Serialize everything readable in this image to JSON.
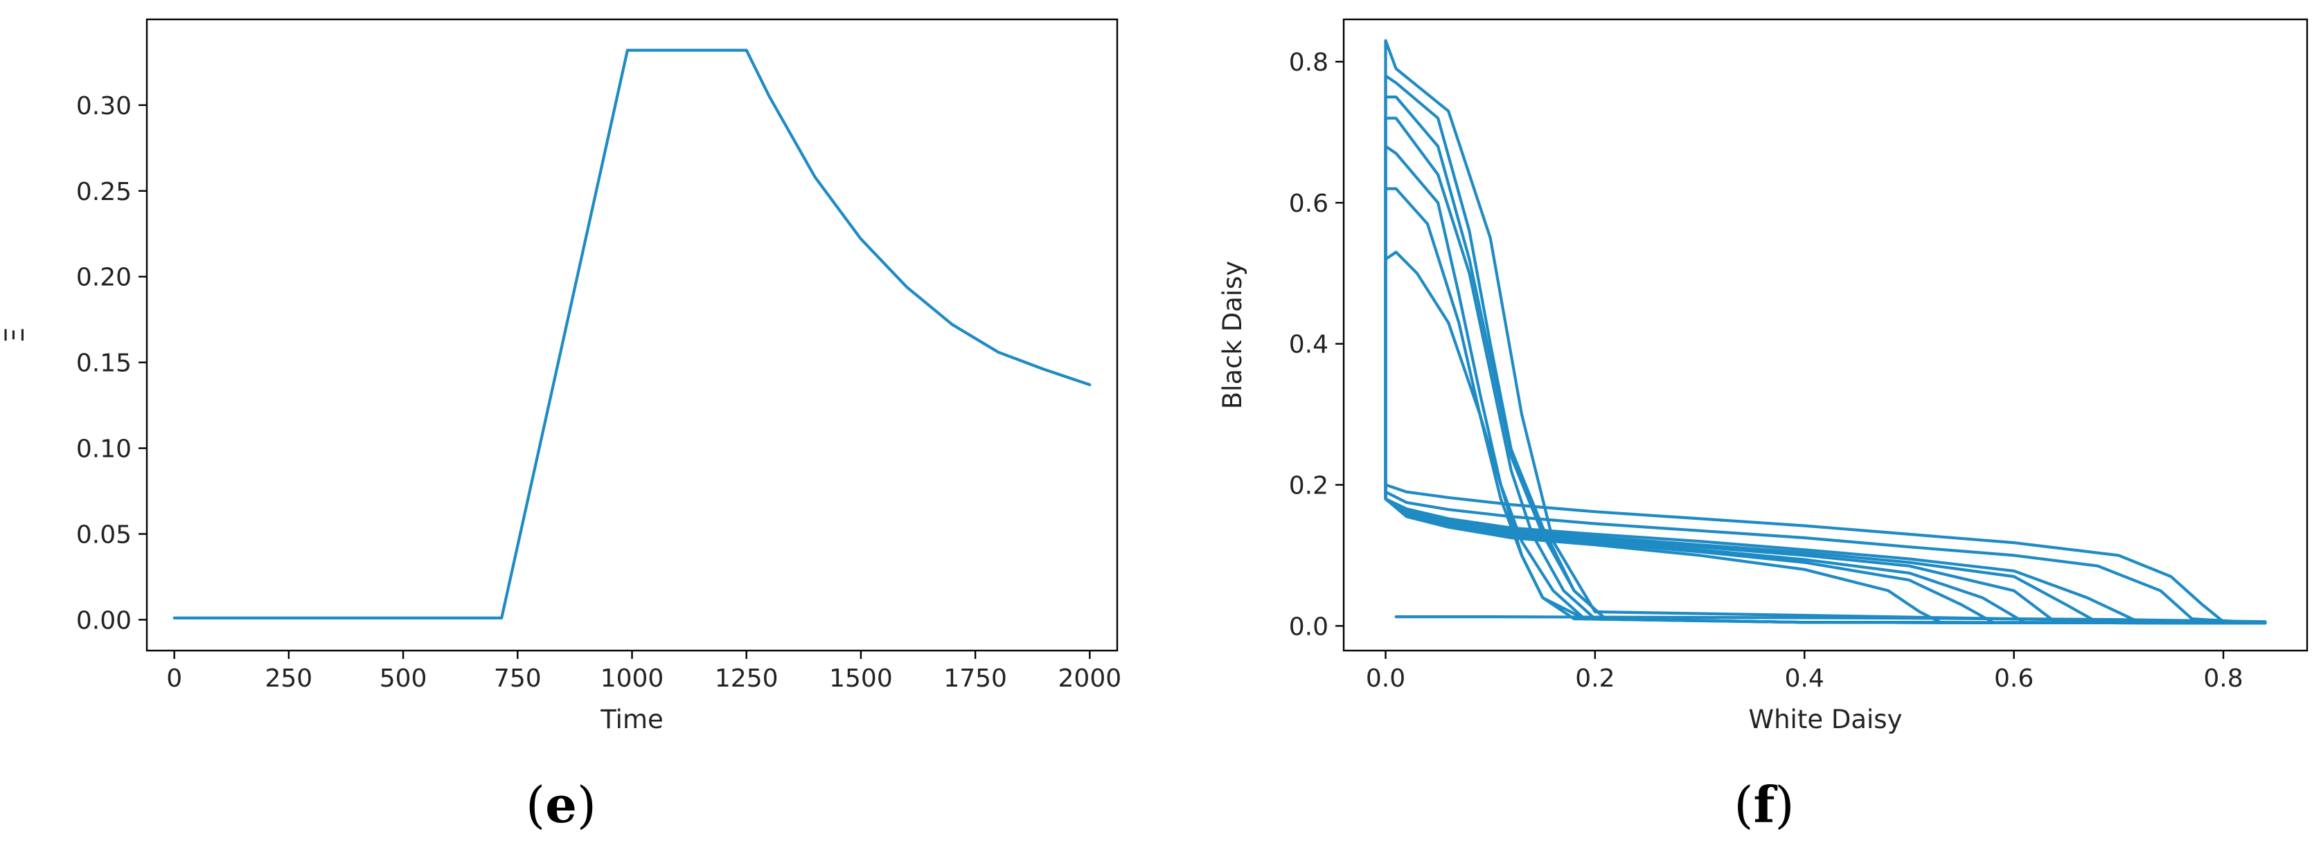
{
  "chart_data": [
    {
      "panel": "e",
      "type": "line",
      "title": "",
      "xlabel": "Time",
      "ylabel": "Ξ",
      "xlim": [
        -60,
        2060
      ],
      "ylim": [
        -0.018,
        0.35
      ],
      "xticks": [
        0,
        250,
        500,
        750,
        1000,
        1250,
        1500,
        1750,
        2000
      ],
      "yticks": [
        0.0,
        0.05,
        0.1,
        0.15,
        0.2,
        0.25,
        0.3
      ],
      "xtick_labels": [
        "0",
        "250",
        "500",
        "750",
        "1000",
        "1250",
        "1500",
        "1750",
        "2000"
      ],
      "ytick_labels": [
        "0.00",
        "0.05",
        "0.10",
        "0.15",
        "0.20",
        "0.25",
        "0.30"
      ],
      "grid": false,
      "color": "#1f8bc4",
      "series": [
        {
          "x": [
            0,
            250,
            500,
            715,
            990,
            1250,
            1300,
            1400,
            1500,
            1600,
            1700,
            1800,
            1900,
            2000
          ],
          "y": [
            0.001,
            0.001,
            0.001,
            0.001,
            0.332,
            0.332,
            0.305,
            0.258,
            0.222,
            0.194,
            0.172,
            0.156,
            0.146,
            0.137
          ]
        }
      ]
    },
    {
      "panel": "f",
      "type": "line",
      "title": "",
      "xlabel": "White Daisy",
      "ylabel": "Black Daisy",
      "xlim": [
        -0.04,
        0.88
      ],
      "ylim": [
        -0.035,
        0.86
      ],
      "xticks": [
        0.0,
        0.2,
        0.4,
        0.6,
        0.8
      ],
      "yticks": [
        0.0,
        0.2,
        0.4,
        0.6,
        0.8
      ],
      "xtick_labels": [
        "0.0",
        "0.2",
        "0.4",
        "0.6",
        "0.8"
      ],
      "ytick_labels": [
        "0.0",
        "0.2",
        "0.4",
        "0.6",
        "0.8"
      ],
      "grid": false,
      "color": "#1f8bc4",
      "series": [
        {
          "x": [
            0.01,
            0.1,
            0.3,
            0.5,
            0.7,
            0.84
          ],
          "y": [
            0.013,
            0.013,
            0.012,
            0.011,
            0.009,
            0.006
          ]
        },
        {
          "x": [
            0.0,
            0.0,
            0.01,
            0.03,
            0.06,
            0.09,
            0.11,
            0.13,
            0.15,
            0.18,
            0.4,
            0.84
          ],
          "y": [
            0.2,
            0.52,
            0.53,
            0.5,
            0.43,
            0.3,
            0.2,
            0.1,
            0.04,
            0.01,
            0.005,
            0.004
          ]
        },
        {
          "x": [
            0.0,
            0.0,
            0.01,
            0.04,
            0.07,
            0.09,
            0.11,
            0.13,
            0.15,
            0.19,
            0.4,
            0.84
          ],
          "y": [
            0.19,
            0.62,
            0.62,
            0.57,
            0.43,
            0.3,
            0.18,
            0.1,
            0.04,
            0.01,
            0.005,
            0.004
          ]
        },
        {
          "x": [
            0.0,
            0.0,
            0.01,
            0.05,
            0.07,
            0.09,
            0.11,
            0.13,
            0.16,
            0.19,
            0.4,
            0.84
          ],
          "y": [
            0.2,
            0.68,
            0.67,
            0.6,
            0.47,
            0.33,
            0.2,
            0.12,
            0.05,
            0.01,
            0.005,
            0.004
          ]
        },
        {
          "x": [
            0.0,
            0.0,
            0.01,
            0.05,
            0.08,
            0.1,
            0.12,
            0.14,
            0.17,
            0.2,
            0.4,
            0.84
          ],
          "y": [
            0.2,
            0.72,
            0.72,
            0.64,
            0.5,
            0.36,
            0.22,
            0.13,
            0.05,
            0.01,
            0.005,
            0.004
          ]
        },
        {
          "x": [
            0.0,
            0.0,
            0.01,
            0.05,
            0.08,
            0.1,
            0.12,
            0.15,
            0.18,
            0.21,
            0.4,
            0.84
          ],
          "y": [
            0.21,
            0.75,
            0.75,
            0.68,
            0.52,
            0.38,
            0.24,
            0.13,
            0.05,
            0.01,
            0.005,
            0.004
          ]
        },
        {
          "x": [
            0.0,
            0.0,
            0.01,
            0.05,
            0.08,
            0.1,
            0.12,
            0.15,
            0.18,
            0.21,
            0.4,
            0.84
          ],
          "y": [
            0.21,
            0.78,
            0.77,
            0.72,
            0.56,
            0.4,
            0.25,
            0.14,
            0.05,
            0.01,
            0.005,
            0.004
          ]
        },
        {
          "x": [
            0.0,
            0.0,
            0.0,
            0.01,
            0.06,
            0.1,
            0.13,
            0.16,
            0.2,
            0.84
          ],
          "y": [
            0.2,
            0.82,
            0.83,
            0.79,
            0.73,
            0.55,
            0.3,
            0.12,
            0.02,
            0.004
          ]
        },
        {
          "x": [
            0.0,
            0.0,
            0.02,
            0.06,
            0.12,
            0.2,
            0.3,
            0.4,
            0.48,
            0.51,
            0.53,
            0.84
          ],
          "y": [
            0.2,
            0.18,
            0.155,
            0.14,
            0.125,
            0.115,
            0.1,
            0.08,
            0.05,
            0.02,
            0.005,
            0.004
          ]
        },
        {
          "x": [
            0.0,
            0.0,
            0.02,
            0.06,
            0.12,
            0.2,
            0.3,
            0.4,
            0.5,
            0.55,
            0.58,
            0.84
          ],
          "y": [
            0.2,
            0.18,
            0.158,
            0.142,
            0.128,
            0.118,
            0.105,
            0.09,
            0.065,
            0.03,
            0.005,
            0.004
          ]
        },
        {
          "x": [
            0.0,
            0.0,
            0.02,
            0.06,
            0.12,
            0.2,
            0.3,
            0.4,
            0.5,
            0.57,
            0.61,
            0.84
          ],
          "y": [
            0.2,
            0.18,
            0.16,
            0.145,
            0.13,
            0.12,
            0.108,
            0.094,
            0.075,
            0.04,
            0.005,
            0.004
          ]
        },
        {
          "x": [
            0.0,
            0.0,
            0.02,
            0.06,
            0.12,
            0.2,
            0.3,
            0.4,
            0.5,
            0.6,
            0.64,
            0.84
          ],
          "y": [
            0.2,
            0.18,
            0.162,
            0.147,
            0.133,
            0.123,
            0.112,
            0.1,
            0.085,
            0.05,
            0.005,
            0.004
          ]
        },
        {
          "x": [
            0.0,
            0.0,
            0.02,
            0.06,
            0.12,
            0.2,
            0.3,
            0.4,
            0.5,
            0.6,
            0.65,
            0.68,
            0.84
          ],
          "y": [
            0.2,
            0.18,
            0.164,
            0.15,
            0.136,
            0.126,
            0.115,
            0.104,
            0.09,
            0.07,
            0.03,
            0.005,
            0.004
          ]
        },
        {
          "x": [
            0.0,
            0.0,
            0.02,
            0.06,
            0.12,
            0.2,
            0.3,
            0.4,
            0.5,
            0.6,
            0.67,
            0.72,
            0.84
          ],
          "y": [
            0.2,
            0.18,
            0.166,
            0.152,
            0.139,
            0.13,
            0.12,
            0.108,
            0.095,
            0.078,
            0.04,
            0.005,
            0.004
          ]
        },
        {
          "x": [
            0.0,
            0.0,
            0.02,
            0.06,
            0.12,
            0.2,
            0.3,
            0.4,
            0.5,
            0.6,
            0.68,
            0.74,
            0.77,
            0.84
          ],
          "y": [
            0.2,
            0.19,
            0.175,
            0.165,
            0.155,
            0.145,
            0.135,
            0.125,
            0.112,
            0.1,
            0.085,
            0.05,
            0.01,
            0.004
          ]
        },
        {
          "x": [
            0.0,
            0.0,
            0.02,
            0.06,
            0.12,
            0.2,
            0.3,
            0.4,
            0.5,
            0.6,
            0.7,
            0.75,
            0.78,
            0.8,
            0.84
          ],
          "y": [
            0.21,
            0.2,
            0.19,
            0.182,
            0.172,
            0.162,
            0.152,
            0.142,
            0.13,
            0.118,
            0.1,
            0.07,
            0.03,
            0.006,
            0.004
          ]
        }
      ]
    }
  ],
  "panel_labels": {
    "e": {
      "open": "(",
      "letter": "e",
      "close": ")"
    },
    "f": {
      "open": "(",
      "letter": "f",
      "close": ")"
    }
  }
}
